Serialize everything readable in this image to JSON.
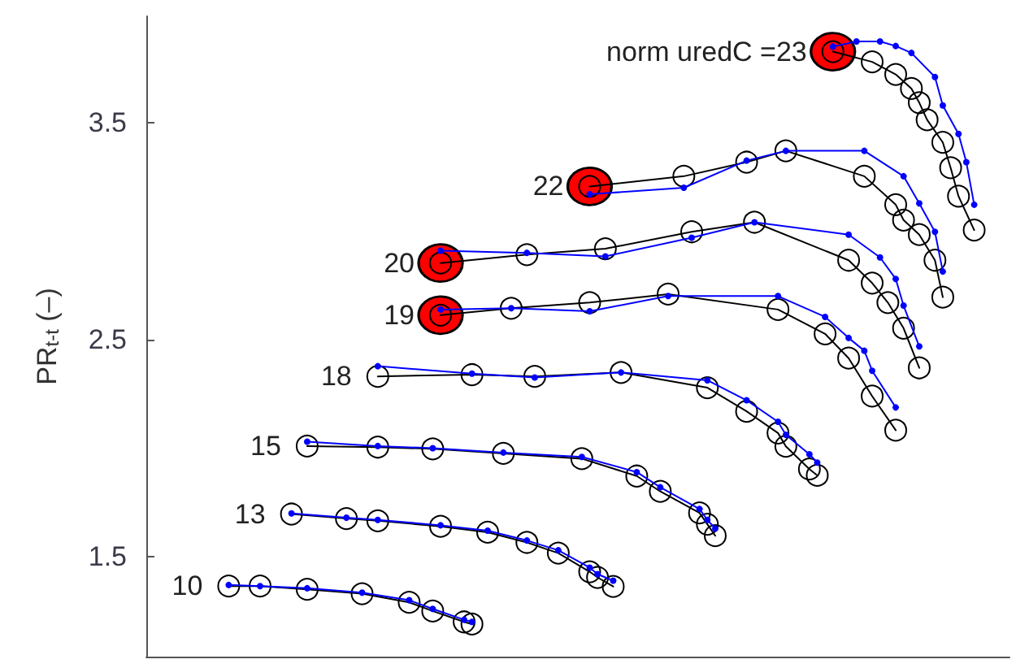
{
  "chart_data": {
    "type": "line",
    "ylabel": "PR$_{t-t}$ (–)",
    "categories": [
      null,
      null,
      null,
      null,
      null,
      null,
      null,
      null,
      null,
      null,
      null,
      null,
      null,
      null,
      null,
      null,
      null,
      null,
      null,
      null,
      null,
      null,
      null,
      null,
      null,
      null,
      null,
      null,
      null,
      null,
      null,
      null,
      null,
      null,
      null,
      null,
      null,
      null,
      null,
      null,
      null,
      null,
      null,
      null,
      null,
      null,
      null,
      null,
      null,
      null,
      null,
      null,
      null,
      null,
      null,
      null,
      null,
      null,
      null,
      null,
      null,
      null,
      null,
      null,
      null,
      null,
      null,
      null,
      null,
      null,
      null,
      null,
      null,
      null,
      null,
      null,
      null,
      null,
      null,
      null,
      null,
      null,
      null,
      null,
      null,
      null,
      null,
      null,
      null,
      null,
      null,
      null,
      null,
      null,
      null,
      null,
      null,
      null,
      null,
      null,
      null,
      null,
      null,
      null,
      null,
      null,
      null,
      null,
      null,
      null
    ],
    "ylim": [
      1.04,
      3.99
    ],
    "yticks": [
      1.5,
      2.5,
      3.5
    ],
    "tick_labels": "y",
    "grid": false,
    "series": [
      {
        "name": "10",
        "color": "#000000",
        "marker": "circle",
        "values": [
          null,
          null,
          null,
          null,
          null,
          null,
          null,
          null,
          null,
          null,
          1.365,
          null,
          null,
          null,
          1.365,
          null,
          null,
          null,
          null,
          null,
          1.35,
          null,
          null,
          null,
          null,
          null,
          null,
          1.33,
          null,
          null,
          null,
          null,
          null,
          1.29,
          null,
          null,
          1.25,
          null,
          null,
          null,
          1.2,
          1.19,
          null,
          null,
          null,
          null,
          null,
          null,
          null,
          null,
          null,
          null,
          null,
          null,
          null,
          null,
          null,
          null,
          null,
          null,
          null,
          null,
          null,
          null,
          null,
          null,
          null,
          null,
          null,
          null,
          null,
          null,
          null,
          null,
          null,
          null,
          null,
          null,
          null,
          null,
          null,
          null,
          null,
          null,
          null,
          null,
          null,
          null,
          null,
          null,
          null,
          null,
          null,
          null,
          null,
          null,
          null,
          null,
          null,
          null,
          null,
          null,
          null,
          null,
          null,
          null,
          null,
          null,
          null,
          null
        ]
      },
      {
        "color": "#0000ff",
        "marker": "circle",
        "values": [
          null,
          null,
          null,
          null,
          null,
          null,
          null,
          null,
          null,
          null,
          1.37,
          null,
          null,
          null,
          1.365,
          null,
          null,
          null,
          null,
          null,
          1.355,
          null,
          null,
          null,
          null,
          null,
          null,
          1.335,
          null,
          null,
          null,
          null,
          null,
          1.3,
          null,
          null,
          1.26,
          null,
          null,
          null,
          1.21,
          1.2,
          null,
          null,
          null,
          null,
          null,
          null,
          null,
          null,
          null,
          null,
          null,
          null,
          null,
          null,
          null,
          null,
          null,
          null,
          null,
          null,
          null,
          null,
          null,
          null,
          null,
          null,
          null,
          null,
          null,
          null,
          null,
          null,
          null,
          null,
          null,
          null,
          null,
          null,
          null,
          null,
          null,
          null,
          null,
          null,
          null,
          null,
          null,
          null,
          null,
          null,
          null,
          null,
          null,
          null,
          null,
          null,
          null,
          null,
          null,
          null,
          null,
          null,
          null,
          null,
          null,
          null,
          null,
          null
        ]
      },
      {
        "name": "13",
        "color": "#000000",
        "marker": "circle",
        "values": [
          null,
          null,
          null,
          null,
          null,
          null,
          null,
          null,
          null,
          null,
          null,
          null,
          null,
          null,
          null,
          null,
          null,
          null,
          1.697,
          null,
          null,
          null,
          null,
          null,
          null,
          1.676,
          null,
          null,
          null,
          1.666,
          null,
          null,
          null,
          null,
          null,
          null,
          null,
          1.64,
          null,
          null,
          null,
          null,
          null,
          1.613,
          null,
          null,
          null,
          null,
          1.566,
          null,
          null,
          null,
          1.517,
          null,
          null,
          null,
          1.431,
          1.405,
          null,
          1.363,
          null,
          null,
          null,
          null,
          null,
          null,
          null,
          null,
          null,
          null,
          null,
          null,
          null,
          null,
          null,
          null,
          null,
          null,
          null,
          null,
          null,
          null,
          null,
          null,
          null,
          null,
          null,
          null,
          null,
          null,
          null,
          null,
          null,
          null,
          null,
          null,
          null,
          null,
          null,
          null,
          null,
          null,
          null,
          null,
          null,
          null,
          null,
          null,
          null,
          null
        ]
      },
      {
        "color": "#0000ff",
        "marker": "circle",
        "values": [
          null,
          null,
          null,
          null,
          null,
          null,
          null,
          null,
          null,
          null,
          null,
          null,
          null,
          null,
          null,
          null,
          null,
          null,
          1.7,
          null,
          null,
          null,
          null,
          null,
          null,
          1.68,
          null,
          null,
          null,
          1.67,
          null,
          null,
          null,
          null,
          null,
          null,
          null,
          1.645,
          null,
          null,
          null,
          null,
          null,
          1.62,
          null,
          null,
          null,
          null,
          1.575,
          null,
          null,
          null,
          1.53,
          null,
          null,
          null,
          1.45,
          1.42,
          null,
          1.39,
          null,
          null,
          null,
          null,
          null,
          null,
          null,
          null,
          null,
          null,
          null,
          null,
          null,
          null,
          null,
          null,
          null,
          null,
          null,
          null,
          null,
          null,
          null,
          null,
          null,
          null,
          null,
          null,
          null,
          null,
          null,
          null,
          null,
          null,
          null,
          null,
          null,
          null,
          null,
          null,
          null,
          null,
          null,
          null,
          null,
          null,
          null,
          null,
          null,
          null
        ]
      },
      {
        "name": "15",
        "color": "#000000",
        "marker": "circle",
        "values": [
          null,
          null,
          null,
          null,
          null,
          null,
          null,
          null,
          null,
          null,
          null,
          null,
          null,
          null,
          null,
          null,
          null,
          null,
          null,
          null,
          2.01,
          null,
          null,
          null,
          null,
          null,
          null,
          null,
          null,
          2.005,
          null,
          null,
          null,
          null,
          null,
          null,
          1.997,
          null,
          null,
          null,
          null,
          null,
          null,
          null,
          null,
          1.976,
          null,
          null,
          null,
          null,
          null,
          null,
          null,
          null,
          null,
          1.952,
          null,
          null,
          null,
          null,
          null,
          null,
          1.872,
          null,
          null,
          1.801,
          null,
          null,
          null,
          null,
          1.702,
          1.65,
          1.597,
          null,
          null,
          null,
          null,
          null,
          null,
          null,
          null,
          null,
          null,
          null,
          null,
          null,
          null,
          null,
          null,
          null,
          null,
          null,
          null,
          null,
          null,
          null,
          null,
          null,
          null,
          null,
          null,
          null,
          null,
          null,
          null,
          null,
          null,
          null,
          null,
          null
        ]
      },
      {
        "color": "#0000ff",
        "marker": "circle",
        "values": [
          null,
          null,
          null,
          null,
          null,
          null,
          null,
          null,
          null,
          null,
          null,
          null,
          null,
          null,
          null,
          null,
          null,
          null,
          null,
          null,
          2.03,
          null,
          null,
          null,
          null,
          null,
          null,
          null,
          null,
          2.01,
          null,
          null,
          null,
          null,
          null,
          null,
          2.0,
          null,
          null,
          null,
          null,
          null,
          null,
          null,
          null,
          1.98,
          null,
          null,
          null,
          null,
          null,
          null,
          null,
          null,
          null,
          1.96,
          null,
          null,
          null,
          null,
          null,
          null,
          1.89,
          null,
          null,
          1.82,
          null,
          null,
          null,
          null,
          1.72,
          1.67,
          1.63,
          null,
          null,
          null,
          null,
          null,
          null,
          null,
          null,
          null,
          null,
          null,
          null,
          null,
          null,
          null,
          null,
          null,
          null,
          null,
          null,
          null,
          null,
          null,
          null,
          null,
          null,
          null,
          null,
          null,
          null,
          null,
          null,
          null,
          null,
          null,
          null,
          null
        ]
      },
      {
        "name": "18",
        "color": "#000000",
        "marker": "circle",
        "values": [
          null,
          null,
          null,
          null,
          null,
          null,
          null,
          null,
          null,
          null,
          null,
          null,
          null,
          null,
          null,
          null,
          null,
          null,
          null,
          null,
          null,
          null,
          null,
          null,
          null,
          null,
          null,
          null,
          null,
          2.331,
          null,
          null,
          null,
          null,
          null,
          null,
          null,
          null,
          null,
          null,
          null,
          2.339,
          null,
          null,
          null,
          null,
          null,
          null,
          null,
          2.331,
          null,
          null,
          null,
          null,
          null,
          null,
          null,
          null,
          null,
          null,
          2.349,
          null,
          null,
          null,
          null,
          null,
          null,
          null,
          null,
          null,
          null,
          2.279,
          null,
          null,
          null,
          null,
          2.17,
          null,
          null,
          null,
          2.07,
          2.009,
          null,
          null,
          1.904,
          1.875,
          null,
          null,
          null,
          null,
          null,
          null,
          null,
          null,
          null,
          null,
          null,
          null,
          null,
          null,
          null,
          null,
          null,
          null,
          null,
          null,
          null,
          null,
          null,
          null
        ]
      },
      {
        "color": "#0000ff",
        "marker": "circle",
        "values": [
          null,
          null,
          null,
          null,
          null,
          null,
          null,
          null,
          null,
          null,
          null,
          null,
          null,
          null,
          null,
          null,
          null,
          null,
          null,
          null,
          null,
          null,
          null,
          null,
          null,
          null,
          null,
          null,
          null,
          2.378,
          null,
          null,
          null,
          null,
          null,
          null,
          null,
          null,
          null,
          null,
          null,
          2.344,
          null,
          null,
          null,
          null,
          null,
          null,
          null,
          2.326,
          null,
          null,
          null,
          null,
          null,
          null,
          null,
          null,
          null,
          null,
          2.349,
          null,
          null,
          null,
          null,
          null,
          null,
          null,
          null,
          null,
          null,
          2.313,
          null,
          null,
          null,
          null,
          2.221,
          null,
          null,
          null,
          2.122,
          2.062,
          null,
          null,
          1.972,
          1.934,
          null,
          null,
          null,
          null,
          null,
          null,
          null,
          null,
          null,
          null,
          null,
          null,
          null,
          null,
          null,
          null,
          null,
          null,
          null,
          null,
          null,
          null,
          null,
          null
        ]
      },
      {
        "name": "19",
        "color": "#000000",
        "marker": "circle",
        "values": [
          null,
          null,
          null,
          null,
          null,
          null,
          null,
          null,
          null,
          null,
          null,
          null,
          null,
          null,
          null,
          null,
          null,
          null,
          null,
          null,
          null,
          null,
          null,
          null,
          null,
          null,
          null,
          null,
          null,
          null,
          null,
          null,
          null,
          null,
          null,
          null,
          null,
          2.613,
          null,
          null,
          null,
          null,
          null,
          null,
          null,
          null,
          2.645,
          null,
          null,
          null,
          null,
          null,
          null,
          null,
          null,
          null,
          2.671,
          null,
          null,
          null,
          null,
          null,
          null,
          null,
          null,
          null,
          2.71,
          null,
          null,
          null,
          null,
          null,
          null,
          null,
          null,
          null,
          null,
          null,
          null,
          null,
          2.639,
          null,
          null,
          null,
          null,
          null,
          2.527,
          null,
          null,
          2.415,
          null,
          null,
          2.24,
          null,
          null,
          2.083,
          null,
          null,
          null,
          null,
          null,
          null,
          null,
          null,
          null,
          null,
          null,
          null,
          null,
          null
        ]
      },
      {
        "color": "#0000ff",
        "marker": "circle",
        "values": [
          null,
          null,
          null,
          null,
          null,
          null,
          null,
          null,
          null,
          null,
          null,
          null,
          null,
          null,
          null,
          null,
          null,
          null,
          null,
          null,
          null,
          null,
          null,
          null,
          null,
          null,
          null,
          null,
          null,
          null,
          null,
          null,
          null,
          null,
          null,
          null,
          null,
          2.639,
          null,
          null,
          null,
          null,
          null,
          null,
          null,
          null,
          2.645,
          null,
          null,
          null,
          null,
          null,
          null,
          null,
          null,
          null,
          2.631,
          null,
          null,
          null,
          null,
          null,
          null,
          null,
          null,
          null,
          2.701,
          null,
          null,
          null,
          null,
          null,
          null,
          null,
          null,
          null,
          null,
          null,
          null,
          null,
          2.701,
          null,
          null,
          null,
          null,
          null,
          2.605,
          null,
          null,
          2.508,
          null,
          2.449,
          2.357,
          null,
          null,
          2.188,
          null,
          null,
          null,
          null,
          null,
          null,
          null,
          null,
          null,
          null,
          null,
          null,
          null,
          null
        ]
      },
      {
        "name": "20",
        "color": "#000000",
        "marker": "circle",
        "values": [
          null,
          null,
          null,
          null,
          null,
          null,
          null,
          null,
          null,
          null,
          null,
          null,
          null,
          null,
          null,
          null,
          null,
          null,
          null,
          null,
          null,
          null,
          null,
          null,
          null,
          null,
          null,
          null,
          null,
          null,
          null,
          null,
          null,
          null,
          null,
          null,
          null,
          2.853,
          null,
          null,
          null,
          null,
          null,
          null,
          null,
          null,
          null,
          null,
          2.892,
          null,
          null,
          null,
          null,
          null,
          null,
          null,
          null,
          null,
          2.919,
          null,
          null,
          null,
          null,
          null,
          null,
          null,
          null,
          null,
          null,
          2.997,
          null,
          null,
          null,
          null,
          null,
          null,
          null,
          3.041,
          null,
          null,
          null,
          null,
          null,
          null,
          null,
          null,
          null,
          null,
          null,
          2.866,
          null,
          null,
          2.761,
          null,
          2.671,
          null,
          2.553,
          null,
          2.37,
          null,
          null,
          null,
          null,
          null,
          null,
          null,
          null,
          null,
          null,
          null
        ]
      },
      {
        "color": "#0000ff",
        "marker": "circle",
        "values": [
          null,
          null,
          null,
          null,
          null,
          null,
          null,
          null,
          null,
          null,
          null,
          null,
          null,
          null,
          null,
          null,
          null,
          null,
          null,
          null,
          null,
          null,
          null,
          null,
          null,
          null,
          null,
          null,
          null,
          null,
          null,
          null,
          null,
          null,
          null,
          null,
          null,
          2.91,
          null,
          null,
          null,
          null,
          null,
          null,
          null,
          null,
          null,
          null,
          2.9,
          null,
          null,
          null,
          null,
          null,
          null,
          null,
          null,
          null,
          2.884,
          null,
          null,
          null,
          null,
          null,
          null,
          null,
          null,
          null,
          null,
          2.97,
          null,
          null,
          null,
          null,
          null,
          null,
          null,
          3.041,
          null,
          null,
          null,
          null,
          null,
          null,
          null,
          null,
          null,
          null,
          null,
          2.984,
          null,
          null,
          null,
          2.879,
          null,
          2.78,
          2.657,
          null,
          2.469,
          null,
          null,
          null,
          null,
          null,
          null,
          null,
          null,
          null,
          null,
          null
        ]
      },
      {
        "name": "22",
        "color": "#000000",
        "marker": "circle",
        "values": [
          null,
          null,
          null,
          null,
          null,
          null,
          null,
          null,
          null,
          null,
          null,
          null,
          null,
          null,
          null,
          null,
          null,
          null,
          null,
          null,
          null,
          null,
          null,
          null,
          null,
          null,
          null,
          null,
          null,
          null,
          null,
          null,
          null,
          null,
          null,
          null,
          null,
          null,
          null,
          null,
          null,
          null,
          null,
          null,
          null,
          null,
          null,
          null,
          null,
          null,
          null,
          null,
          null,
          null,
          null,
          null,
          3.206,
          null,
          null,
          null,
          null,
          null,
          null,
          null,
          null,
          null,
          null,
          null,
          3.253,
          null,
          null,
          null,
          null,
          null,
          null,
          null,
          3.318,
          null,
          null,
          null,
          null,
          3.37,
          null,
          null,
          null,
          null,
          null,
          null,
          null,
          null,
          null,
          3.253,
          null,
          null,
          null,
          3.122,
          3.051,
          null,
          2.984,
          null,
          2.866,
          2.696,
          null,
          null,
          null,
          null,
          null,
          null,
          null,
          null
        ]
      },
      {
        "color": "#0000ff",
        "marker": "circle",
        "values": [
          null,
          null,
          null,
          null,
          null,
          null,
          null,
          null,
          null,
          null,
          null,
          null,
          null,
          null,
          null,
          null,
          null,
          null,
          null,
          null,
          null,
          null,
          null,
          null,
          null,
          null,
          null,
          null,
          null,
          null,
          null,
          null,
          null,
          null,
          null,
          null,
          null,
          null,
          null,
          null,
          null,
          null,
          null,
          null,
          null,
          null,
          null,
          null,
          null,
          null,
          null,
          null,
          null,
          null,
          null,
          null,
          3.17,
          null,
          null,
          null,
          null,
          null,
          null,
          null,
          null,
          null,
          null,
          null,
          3.2,
          null,
          null,
          null,
          null,
          null,
          null,
          null,
          3.325,
          null,
          null,
          null,
          null,
          3.37,
          null,
          null,
          null,
          null,
          null,
          null,
          null,
          null,
          null,
          3.37,
          null,
          null,
          null,
          null,
          3.253,
          null,
          3.128,
          null,
          2.997,
          2.814,
          null,
          null,
          null,
          null,
          null,
          null,
          null,
          null
        ]
      },
      {
        "name": "norm uredC =23",
        "color": "#000000",
        "marker": "circle",
        "values": [
          null,
          null,
          null,
          null,
          null,
          null,
          null,
          null,
          null,
          null,
          null,
          null,
          null,
          null,
          null,
          null,
          null,
          null,
          null,
          null,
          null,
          null,
          null,
          null,
          null,
          null,
          null,
          null,
          null,
          null,
          null,
          null,
          null,
          null,
          null,
          null,
          null,
          null,
          null,
          null,
          null,
          null,
          null,
          null,
          null,
          null,
          null,
          null,
          null,
          null,
          null,
          null,
          null,
          null,
          null,
          null,
          null,
          null,
          null,
          null,
          null,
          null,
          null,
          null,
          null,
          null,
          null,
          null,
          null,
          null,
          null,
          null,
          null,
          null,
          null,
          null,
          null,
          null,
          null,
          null,
          null,
          null,
          null,
          null,
          null,
          null,
          null,
          3.827,
          null,
          null,
          null,
          null,
          3.78,
          null,
          null,
          3.722,
          null,
          3.657,
          3.592,
          3.513,
          null,
          3.409,
          3.292,
          3.161,
          null,
          3.005,
          null,
          null,
          null,
          null
        ]
      },
      {
        "color": "#0000ff",
        "marker": "circle",
        "values": [
          null,
          null,
          null,
          null,
          null,
          null,
          null,
          null,
          null,
          null,
          null,
          null,
          null,
          null,
          null,
          null,
          null,
          null,
          null,
          null,
          null,
          null,
          null,
          null,
          null,
          null,
          null,
          null,
          null,
          null,
          null,
          null,
          null,
          null,
          null,
          null,
          null,
          null,
          null,
          null,
          null,
          null,
          null,
          null,
          null,
          null,
          null,
          null,
          null,
          null,
          null,
          null,
          null,
          null,
          null,
          null,
          null,
          null,
          null,
          null,
          null,
          null,
          null,
          null,
          null,
          null,
          null,
          null,
          null,
          null,
          null,
          null,
          null,
          null,
          null,
          null,
          null,
          null,
          null,
          null,
          null,
          null,
          null,
          null,
          null,
          null,
          null,
          3.85,
          null,
          null,
          3.874,
          null,
          null,
          3.874,
          null,
          3.853,
          null,
          3.821,
          null,
          null,
          3.71,
          3.579,
          null,
          3.448,
          3.318,
          3.122,
          null,
          null,
          null,
          null
        ]
      },
      {
        "type": "scatter",
        "color": "#ff0000",
        "marker": "circle",
        "values": [
          null,
          null,
          null,
          null,
          null,
          null,
          null,
          null,
          null,
          null,
          null,
          null,
          null,
          null,
          null,
          null,
          null,
          null,
          null,
          null,
          null,
          null,
          null,
          null,
          null,
          null,
          null,
          null,
          null,
          null,
          null,
          null,
          null,
          null,
          null,
          null,
          null,
          2.613,
          null,
          null,
          null,
          null,
          null,
          null,
          null,
          null,
          null,
          null,
          null,
          null,
          null,
          null,
          null,
          null,
          null,
          null,
          3.206,
          null,
          null,
          null,
          null,
          null,
          null,
          null,
          null,
          null,
          null,
          null,
          null,
          null,
          null,
          null,
          null,
          null,
          null,
          null,
          null,
          null,
          null,
          null,
          null,
          null,
          null,
          null,
          null,
          null,
          null,
          3.827,
          null,
          null,
          null,
          null,
          null,
          null,
          null,
          null,
          null,
          null,
          null,
          null,
          null,
          null,
          null,
          null,
          null,
          null,
          null,
          null,
          null,
          null
        ]
      },
      {
        "type": "scatter",
        "color": "#ff0000",
        "marker": "circle",
        "values": [
          null,
          null,
          null,
          null,
          null,
          null,
          null,
          null,
          null,
          null,
          null,
          null,
          null,
          null,
          null,
          null,
          null,
          null,
          null,
          null,
          null,
          null,
          null,
          null,
          null,
          null,
          null,
          null,
          null,
          null,
          null,
          null,
          null,
          null,
          null,
          null,
          null,
          2.853,
          null,
          null,
          null,
          null,
          null,
          null,
          null,
          null,
          null,
          null,
          null,
          null,
          null,
          null,
          null,
          null,
          null,
          null,
          null,
          null,
          null,
          null,
          null,
          null,
          null,
          null,
          null,
          null,
          null,
          null,
          null,
          null,
          null,
          null,
          null,
          null,
          null,
          null,
          null,
          null,
          null,
          null,
          null,
          null,
          null,
          null,
          null,
          null,
          null,
          null,
          null,
          null,
          null,
          null,
          null,
          null,
          null,
          null,
          null,
          null,
          null,
          null,
          null,
          null,
          null,
          null,
          null,
          null,
          null,
          null,
          null,
          null
        ]
      }
    ]
  }
}
